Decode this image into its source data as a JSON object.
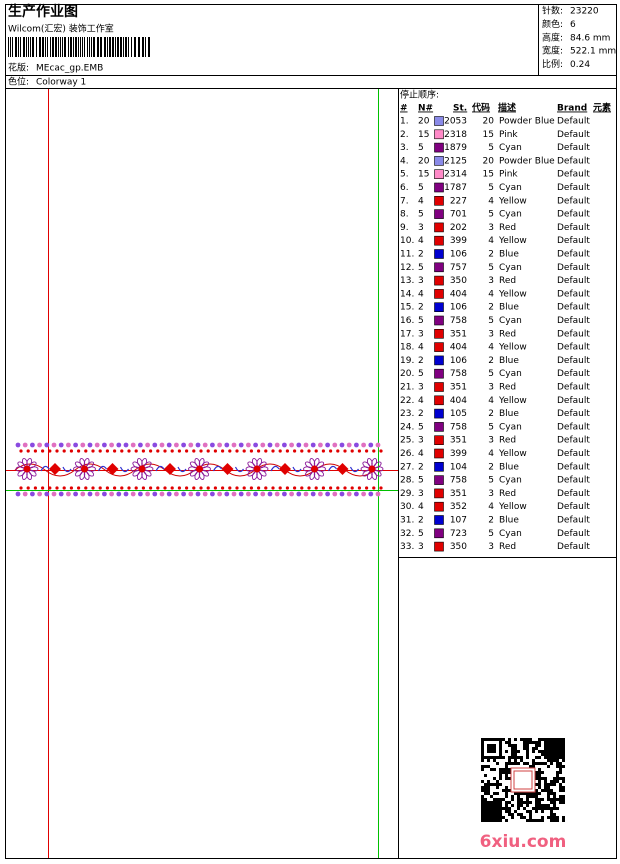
{
  "header": {
    "title": "生产作业图",
    "subtitle": "Wilcom(汇宏) 装饰工作室",
    "design_label": "花版:",
    "design": "MEcac_gp.EMB",
    "colorway_label": "色位:",
    "colorway": "Colorway 1"
  },
  "stats": [
    {
      "label": "针数:",
      "value": "23220"
    },
    {
      "label": "颜色:",
      "value": "6"
    },
    {
      "label": "高度:",
      "value": "84.6 mm"
    },
    {
      "label": "宽度:",
      "value": "522.1 mm"
    },
    {
      "label": "比例:",
      "value": "0.24"
    }
  ],
  "stop_sequence": {
    "title": "停止顺序:",
    "columns": [
      "#",
      "N#",
      "St.",
      "代码",
      "描述",
      "Brand",
      "元素"
    ],
    "rows": [
      {
        "no": "1.",
        "needle": "20",
        "color": "#8a8ae8",
        "stitches": "2053",
        "code": "20",
        "name": "Powder Blue",
        "brand": "Default"
      },
      {
        "no": "2.",
        "needle": "15",
        "color": "#ff8ac8",
        "stitches": "2318",
        "code": "15",
        "name": "Pink",
        "brand": "Default"
      },
      {
        "no": "3.",
        "needle": "5",
        "color": "#800080",
        "stitches": "1879",
        "code": "5",
        "name": "Cyan",
        "brand": "Default"
      },
      {
        "no": "4.",
        "needle": "20",
        "color": "#8a8ae8",
        "stitches": "2125",
        "code": "20",
        "name": "Powder Blue",
        "brand": "Default"
      },
      {
        "no": "5.",
        "needle": "15",
        "color": "#ff8ac8",
        "stitches": "2314",
        "code": "15",
        "name": "Pink",
        "brand": "Default"
      },
      {
        "no": "6.",
        "needle": "5",
        "color": "#800080",
        "stitches": "1787",
        "code": "5",
        "name": "Cyan",
        "brand": "Default"
      },
      {
        "no": "7.",
        "needle": "4",
        "color": "#e00000",
        "stitches": "227",
        "code": "4",
        "name": "Yellow",
        "brand": "Default"
      },
      {
        "no": "8.",
        "needle": "5",
        "color": "#800080",
        "stitches": "701",
        "code": "5",
        "name": "Cyan",
        "brand": "Default"
      },
      {
        "no": "9.",
        "needle": "3",
        "color": "#e00000",
        "stitches": "202",
        "code": "3",
        "name": "Red",
        "brand": "Default"
      },
      {
        "no": "10.",
        "needle": "4",
        "color": "#e00000",
        "stitches": "399",
        "code": "4",
        "name": "Yellow",
        "brand": "Default"
      },
      {
        "no": "11.",
        "needle": "2",
        "color": "#0000d0",
        "stitches": "106",
        "code": "2",
        "name": "Blue",
        "brand": "Default"
      },
      {
        "no": "12.",
        "needle": "5",
        "color": "#800080",
        "stitches": "757",
        "code": "5",
        "name": "Cyan",
        "brand": "Default"
      },
      {
        "no": "13.",
        "needle": "3",
        "color": "#e00000",
        "stitches": "350",
        "code": "3",
        "name": "Red",
        "brand": "Default"
      },
      {
        "no": "14.",
        "needle": "4",
        "color": "#e00000",
        "stitches": "404",
        "code": "4",
        "name": "Yellow",
        "brand": "Default"
      },
      {
        "no": "15.",
        "needle": "2",
        "color": "#0000d0",
        "stitches": "106",
        "code": "2",
        "name": "Blue",
        "brand": "Default"
      },
      {
        "no": "16.",
        "needle": "5",
        "color": "#800080",
        "stitches": "758",
        "code": "5",
        "name": "Cyan",
        "brand": "Default"
      },
      {
        "no": "17.",
        "needle": "3",
        "color": "#e00000",
        "stitches": "351",
        "code": "3",
        "name": "Red",
        "brand": "Default"
      },
      {
        "no": "18.",
        "needle": "4",
        "color": "#e00000",
        "stitches": "404",
        "code": "4",
        "name": "Yellow",
        "brand": "Default"
      },
      {
        "no": "19.",
        "needle": "2",
        "color": "#0000d0",
        "stitches": "106",
        "code": "2",
        "name": "Blue",
        "brand": "Default"
      },
      {
        "no": "20.",
        "needle": "5",
        "color": "#800080",
        "stitches": "758",
        "code": "5",
        "name": "Cyan",
        "brand": "Default"
      },
      {
        "no": "21.",
        "needle": "3",
        "color": "#e00000",
        "stitches": "351",
        "code": "3",
        "name": "Red",
        "brand": "Default"
      },
      {
        "no": "22.",
        "needle": "4",
        "color": "#e00000",
        "stitches": "404",
        "code": "4",
        "name": "Yellow",
        "brand": "Default"
      },
      {
        "no": "23.",
        "needle": "2",
        "color": "#0000d0",
        "stitches": "105",
        "code": "2",
        "name": "Blue",
        "brand": "Default"
      },
      {
        "no": "24.",
        "needle": "5",
        "color": "#800080",
        "stitches": "758",
        "code": "5",
        "name": "Cyan",
        "brand": "Default"
      },
      {
        "no": "25.",
        "needle": "3",
        "color": "#e00000",
        "stitches": "351",
        "code": "3",
        "name": "Red",
        "brand": "Default"
      },
      {
        "no": "26.",
        "needle": "4",
        "color": "#e00000",
        "stitches": "399",
        "code": "4",
        "name": "Yellow",
        "brand": "Default"
      },
      {
        "no": "27.",
        "needle": "2",
        "color": "#0000d0",
        "stitches": "104",
        "code": "2",
        "name": "Blue",
        "brand": "Default"
      },
      {
        "no": "28.",
        "needle": "5",
        "color": "#800080",
        "stitches": "758",
        "code": "5",
        "name": "Cyan",
        "brand": "Default"
      },
      {
        "no": "29.",
        "needle": "3",
        "color": "#e00000",
        "stitches": "351",
        "code": "3",
        "name": "Red",
        "brand": "Default"
      },
      {
        "no": "30.",
        "needle": "4",
        "color": "#e00000",
        "stitches": "352",
        "code": "4",
        "name": "Yellow",
        "brand": "Default"
      },
      {
        "no": "31.",
        "needle": "2",
        "color": "#0000d0",
        "stitches": "107",
        "code": "2",
        "name": "Blue",
        "brand": "Default"
      },
      {
        "no": "32.",
        "needle": "5",
        "color": "#800080",
        "stitches": "723",
        "code": "5",
        "name": "Cyan",
        "brand": "Default"
      },
      {
        "no": "33.",
        "needle": "3",
        "color": "#e00000",
        "stitches": "350",
        "code": "3",
        "name": "Red",
        "brand": "Default"
      }
    ]
  },
  "watermark": "6xiu.com"
}
